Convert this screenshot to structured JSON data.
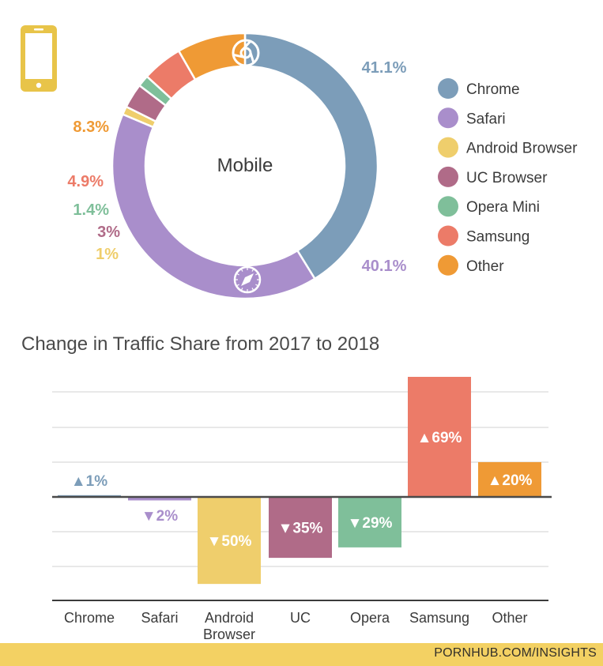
{
  "colors": {
    "chrome": "#7c9db9",
    "safari": "#a98ecb",
    "android": "#efce6c",
    "uc": "#b06b88",
    "opera_mini": "#7fbf9a",
    "samsung": "#ec7b68",
    "other": "#ef9a35",
    "text_dark": "#3b3b3b",
    "phone_icon": "#e8c449",
    "footer_band": "#f3d163"
  },
  "icons": {
    "device": "mobile-phone-icon",
    "chrome": "chrome-logo-icon",
    "safari": "safari-compass-icon"
  },
  "donut_center_label": "Mobile",
  "legend": [
    {
      "label": "Chrome",
      "key": "chrome"
    },
    {
      "label": "Safari",
      "key": "safari"
    },
    {
      "label": "Android Browser",
      "key": "android"
    },
    {
      "label": "UC Browser",
      "key": "uc"
    },
    {
      "label": "Opera Mini",
      "key": "opera_mini"
    },
    {
      "label": "Samsung",
      "key": "samsung"
    },
    {
      "label": "Other",
      "key": "other"
    }
  ],
  "bar_title": "Change in Traffic Share from 2017 to 2018",
  "footer": "PORNHUB.COM/INSIGHTS",
  "chart_data": [
    {
      "type": "pie",
      "title": "Mobile",
      "categories": [
        "Chrome",
        "Safari",
        "Android Browser",
        "UC Browser",
        "Opera Mini",
        "Samsung",
        "Other"
      ],
      "values": [
        41.1,
        40.1,
        1,
        3,
        1.4,
        4.9,
        8.3
      ],
      "labels": [
        "41.1%",
        "40.1%",
        "1%",
        "3%",
        "1.4%",
        "4.9%",
        "8.3%"
      ],
      "donut": true
    },
    {
      "type": "bar",
      "title": "Change in Traffic Share from 2017 to 2018",
      "categories": [
        "Chrome",
        "Safari",
        "Android Browser",
        "UC",
        "Opera",
        "Samsung",
        "Other"
      ],
      "values": [
        1,
        -2,
        -50,
        -35,
        -29,
        69,
        20
      ],
      "labels": [
        "1%",
        "2%",
        "50%",
        "35%",
        "29%",
        "69%",
        "20%"
      ],
      "ylim": [
        -50,
        69
      ],
      "grid": true
    }
  ]
}
